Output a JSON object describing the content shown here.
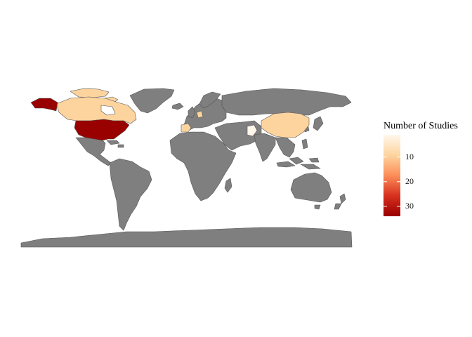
{
  "map": {
    "land_color": "#7f7f7f",
    "border_color": "#555555",
    "ocean_color": "#ffffff",
    "highlighted": [
      {
        "region": "Alaska (United States)",
        "value": 34
      },
      {
        "region": "United States",
        "value": 34
      },
      {
        "region": "Canada",
        "value": 8
      },
      {
        "region": "China",
        "value": 6
      },
      {
        "region": "Spain",
        "value": 2
      },
      {
        "region": "Pakistan",
        "value": 1
      },
      {
        "region": "Germany",
        "value": 1
      }
    ]
  },
  "legend": {
    "title": "Number of Studies",
    "ticks": [
      10,
      20,
      30
    ],
    "min": 1,
    "max": 34,
    "colors": [
      "#fff7ec",
      "#fdd49e",
      "#fc8d59",
      "#d7301f",
      "#990000"
    ]
  }
}
